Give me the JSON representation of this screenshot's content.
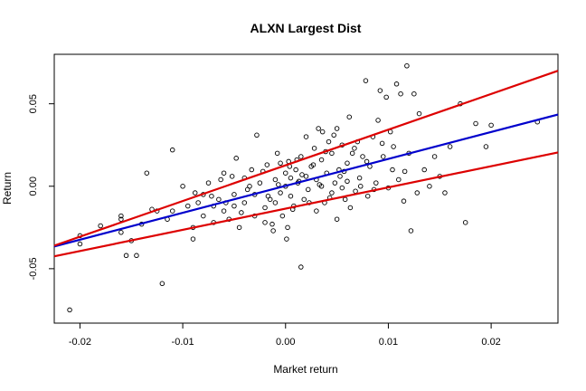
{
  "chart_data": {
    "type": "scatter",
    "title": "ALXN Largest Dist",
    "xlabel": "Market return",
    "ylabel": "Return",
    "xlim": [
      -0.0225,
      0.0265
    ],
    "ylim": [
      -0.083,
      0.08
    ],
    "x_ticks": [
      {
        "value": -0.02,
        "label": "-0.02"
      },
      {
        "value": -0.01,
        "label": "-0.01"
      },
      {
        "value": 0.0,
        "label": "0.00"
      },
      {
        "value": 0.01,
        "label": "0.01"
      },
      {
        "value": 0.02,
        "label": "0.02"
      }
    ],
    "y_ticks": [
      {
        "value": -0.05,
        "label": "-0.05"
      },
      {
        "value": 0.0,
        "label": "0.00"
      },
      {
        "value": 0.05,
        "label": "0.05"
      }
    ],
    "grid": false,
    "lines": [
      {
        "color": "#0000cc",
        "x": [
          -0.0225,
          0.0265
        ],
        "y": [
          -0.0365,
          0.0435
        ]
      },
      {
        "color": "#dd0000",
        "x": [
          -0.0225,
          0.0265
        ],
        "y": [
          -0.036,
          0.07
        ]
      },
      {
        "color": "#dd0000",
        "x": [
          -0.0225,
          0.0265
        ],
        "y": [
          -0.0425,
          0.0205
        ]
      }
    ],
    "points": [
      [
        -0.021,
        -0.075
      ],
      [
        -0.02,
        -0.03
      ],
      [
        -0.02,
        -0.035
      ],
      [
        -0.018,
        -0.024
      ],
      [
        -0.016,
        -0.018
      ],
      [
        -0.016,
        -0.02
      ],
      [
        -0.016,
        -0.028
      ],
      [
        -0.0155,
        -0.042
      ],
      [
        -0.015,
        -0.033
      ],
      [
        -0.0145,
        -0.042
      ],
      [
        -0.014,
        -0.023
      ],
      [
        -0.0135,
        0.008
      ],
      [
        -0.013,
        -0.014
      ],
      [
        -0.0125,
        -0.015
      ],
      [
        -0.012,
        -0.059
      ],
      [
        -0.0115,
        -0.02
      ],
      [
        -0.011,
        0.022
      ],
      [
        -0.011,
        -0.015
      ],
      [
        -0.01,
        0.0
      ],
      [
        -0.0095,
        -0.012
      ],
      [
        -0.009,
        -0.025
      ],
      [
        -0.009,
        -0.032
      ],
      [
        -0.0085,
        -0.01
      ],
      [
        -0.008,
        -0.005
      ],
      [
        -0.008,
        -0.018
      ],
      [
        -0.0075,
        0.002
      ],
      [
        -0.007,
        -0.012
      ],
      [
        -0.007,
        -0.022
      ],
      [
        -0.0065,
        -0.008
      ],
      [
        -0.006,
        -0.015
      ],
      [
        -0.006,
        0.008
      ],
      [
        -0.0055,
        -0.02
      ],
      [
        -0.005,
        -0.005
      ],
      [
        -0.005,
        -0.012
      ],
      [
        -0.0048,
        0.017
      ],
      [
        -0.0045,
        -0.025
      ],
      [
        -0.004,
        0.005
      ],
      [
        -0.004,
        -0.01
      ],
      [
        -0.0035,
        0.0
      ],
      [
        -0.003,
        -0.018
      ],
      [
        -0.003,
        -0.005
      ],
      [
        -0.0028,
        0.031
      ],
      [
        -0.0025,
        0.002
      ],
      [
        -0.002,
        -0.013
      ],
      [
        -0.002,
        -0.022
      ],
      [
        -0.0018,
        0.013
      ],
      [
        -0.0015,
        -0.008
      ],
      [
        -0.0012,
        -0.027
      ],
      [
        -0.001,
        0.004
      ],
      [
        -0.001,
        -0.01
      ],
      [
        -0.0008,
        0.02
      ],
      [
        -0.0005,
        -0.004
      ],
      [
        -0.0005,
        0.014
      ],
      [
        -0.0003,
        -0.018
      ],
      [
        0.0,
        0.008
      ],
      [
        0.0,
        0.0
      ],
      [
        0.0002,
        -0.025
      ],
      [
        0.0003,
        0.015
      ],
      [
        0.0005,
        -0.006
      ],
      [
        0.0005,
        0.005
      ],
      [
        0.0008,
        -0.012
      ],
      [
        0.001,
        0.01
      ],
      [
        0.0012,
        0.002
      ],
      [
        0.0015,
        -0.049
      ],
      [
        0.0015,
        0.018
      ],
      [
        0.0018,
        -0.008
      ],
      [
        0.002,
        0.006
      ],
      [
        0.002,
        0.03
      ],
      [
        0.0022,
        -0.002
      ],
      [
        0.0025,
        0.012
      ],
      [
        0.0028,
        0.023
      ],
      [
        0.003,
        -0.015
      ],
      [
        0.003,
        0.004
      ],
      [
        0.0032,
        0.035
      ],
      [
        0.0035,
        0.0
      ],
      [
        0.0035,
        0.016
      ],
      [
        0.0038,
        -0.01
      ],
      [
        0.004,
        0.008
      ],
      [
        0.0042,
        0.027
      ],
      [
        0.0045,
        -0.004
      ],
      [
        0.0045,
        0.02
      ],
      [
        0.0048,
        0.002
      ],
      [
        0.005,
        0.035
      ],
      [
        0.005,
        -0.02
      ],
      [
        0.0052,
        0.01
      ],
      [
        0.0055,
        0.025
      ],
      [
        0.0058,
        -0.008
      ],
      [
        0.006,
        0.014
      ],
      [
        0.006,
        0.003
      ],
      [
        0.0062,
        0.042
      ],
      [
        0.0065,
        0.02
      ],
      [
        0.0068,
        -0.003
      ],
      [
        0.007,
        0.027
      ],
      [
        0.0072,
        0.005
      ],
      [
        0.0075,
        0.018
      ],
      [
        0.0078,
        0.064
      ],
      [
        0.008,
        -0.006
      ],
      [
        0.0082,
        0.012
      ],
      [
        0.0085,
        0.03
      ],
      [
        0.0088,
        0.002
      ],
      [
        0.009,
        0.04
      ],
      [
        0.0092,
        0.058
      ],
      [
        0.0095,
        0.018
      ],
      [
        0.0098,
        0.054
      ],
      [
        0.01,
        -0.001
      ],
      [
        0.0102,
        0.033
      ],
      [
        0.0105,
        0.024
      ],
      [
        0.0108,
        0.062
      ],
      [
        0.011,
        0.004
      ],
      [
        0.0112,
        0.056
      ],
      [
        0.0115,
        -0.009
      ],
      [
        0.0118,
        0.073
      ],
      [
        0.012,
        0.02
      ],
      [
        0.0122,
        -0.027
      ],
      [
        0.0125,
        0.056
      ],
      [
        0.0128,
        -0.004
      ],
      [
        0.013,
        0.044
      ],
      [
        0.0135,
        0.01
      ],
      [
        0.014,
        0.0
      ],
      [
        0.0145,
        0.018
      ],
      [
        0.015,
        0.006
      ],
      [
        0.0155,
        -0.004
      ],
      [
        0.016,
        0.024
      ],
      [
        0.017,
        0.05
      ],
      [
        0.0175,
        -0.022
      ],
      [
        0.0185,
        0.038
      ],
      [
        0.0195,
        0.024
      ],
      [
        0.02,
        0.037
      ],
      [
        0.0245,
        0.039
      ],
      [
        -0.0088,
        -0.004
      ],
      [
        -0.0072,
        -0.006
      ],
      [
        -0.0058,
        -0.01
      ],
      [
        -0.0043,
        -0.016
      ],
      [
        -0.0037,
        -0.002
      ],
      [
        -0.0022,
        0.009
      ],
      [
        -0.0017,
        -0.006
      ],
      [
        -0.0007,
        0.001
      ],
      [
        0.0004,
        0.012
      ],
      [
        0.0007,
        -0.014
      ],
      [
        0.0011,
        0.016
      ],
      [
        0.0016,
        0.007
      ],
      [
        0.0023,
        -0.01
      ],
      [
        0.0027,
        0.013
      ],
      [
        0.0033,
        0.001
      ],
      [
        0.0039,
        0.021
      ],
      [
        0.0043,
        -0.007
      ],
      [
        0.0047,
        0.031
      ],
      [
        0.0053,
        0.006
      ],
      [
        0.0057,
        0.009
      ],
      [
        0.0063,
        -0.013
      ],
      [
        0.0067,
        0.023
      ],
      [
        0.0073,
        0.0
      ],
      [
        0.0079,
        0.015
      ],
      [
        0.0086,
        -0.002
      ],
      [
        0.0094,
        0.026
      ],
      [
        0.0104,
        0.01
      ],
      [
        0.0116,
        0.009
      ],
      [
        -0.0063,
        0.004
      ],
      [
        -0.0052,
        0.006
      ],
      [
        -0.0033,
        0.01
      ],
      [
        -0.0013,
        -0.023
      ],
      [
        0.0001,
        -0.032
      ],
      [
        0.0013,
        0.003
      ],
      [
        0.0036,
        0.033
      ],
      [
        0.0055,
        -0.001
      ]
    ]
  }
}
